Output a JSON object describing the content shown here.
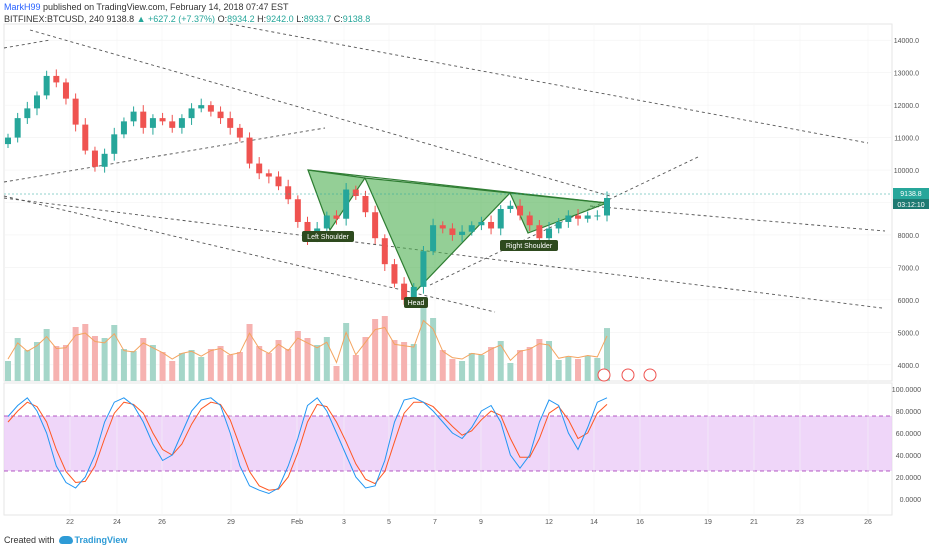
{
  "header": {
    "user": "MarkH99",
    "published": "published on TradingView.com, February 14, 2018 07:47 EST",
    "symbol": "BITFINEX:BTCUSD, 240",
    "price": "9138.8",
    "change": "▲ +627.2 (+7.37%)",
    "o_label": "O:",
    "o_value": "8934.2",
    "h_label": "H:",
    "h_value": "9242.0",
    "l_label": "L:",
    "l_value": "8933.7",
    "c_label": "C:",
    "c_value": "9138.8"
  },
  "footer": {
    "created": "Created with",
    "brand": "TradingView"
  },
  "colors": {
    "up": "#26a69a",
    "down": "#ef5350",
    "pattern_fill": "#4caf50",
    "stoch_k": "#2196f3",
    "stoch_d": "#ff5722",
    "band": "#e1bee7"
  },
  "chart_data": [
    {
      "type": "candlestick",
      "price_axis": [
        "14000.0",
        "13000.0",
        "12000.0",
        "11000.0",
        "10000.0",
        "9000.0",
        "8000.0",
        "7000.0",
        "6000.0",
        "5000.0",
        "4000.0"
      ],
      "x_axis": [
        "22",
        "24",
        "26",
        "29",
        "Feb",
        "3",
        "5",
        "7",
        "9",
        "12",
        "14",
        "16",
        "19",
        "21",
        "23",
        "26"
      ],
      "last_price_label": "9138.8",
      "countdown_label": "03:12:10",
      "annotations": [
        "Left Shoulder",
        "Head",
        "Right Shoulder"
      ],
      "ylim": [
        3500,
        14500
      ],
      "close": [
        11000,
        11600,
        11900,
        12300,
        12900,
        12700,
        12200,
        11400,
        10600,
        10100,
        10500,
        11100,
        11500,
        11800,
        11300,
        11600,
        11500,
        11300,
        11600,
        11900,
        12000,
        11800,
        11600,
        11300,
        11000,
        10200,
        9900,
        9800,
        9500,
        9100,
        8400,
        7900,
        8200,
        8600,
        8500,
        9400,
        9200,
        8700,
        7900,
        7100,
        6500,
        6000,
        6400,
        7500,
        8300,
        8200,
        8000,
        8100,
        8300,
        8400,
        8200,
        8800,
        8900,
        8600,
        8300,
        7900,
        8200,
        8400,
        8600,
        8500,
        8600,
        8600,
        9138.8
      ]
    },
    {
      "type": "bar",
      "name": "volume",
      "note_series": "relative volume per candle"
    },
    {
      "type": "line",
      "name": "stochastic",
      "y_axis": [
        "100.0000",
        "80.0000",
        "60.0000",
        "40.0000",
        "20.0000",
        "0.0000"
      ],
      "band": [
        25,
        75
      ],
      "ylim": [
        0,
        100
      ],
      "k": [
        75,
        85,
        92,
        80,
        60,
        30,
        15,
        10,
        20,
        40,
        70,
        88,
        92,
        85,
        70,
        50,
        35,
        40,
        60,
        80,
        90,
        92,
        85,
        60,
        30,
        12,
        8,
        5,
        10,
        30,
        55,
        85,
        92,
        80,
        60,
        40,
        20,
        10,
        12,
        35,
        70,
        90,
        92,
        88,
        80,
        70,
        60,
        55,
        65,
        80,
        85,
        70,
        40,
        28,
        40,
        70,
        90,
        85,
        60,
        45,
        65,
        88,
        92
      ],
      "d": [
        70,
        80,
        88,
        84,
        70,
        45,
        25,
        15,
        16,
        30,
        55,
        78,
        88,
        86,
        78,
        60,
        45,
        40,
        50,
        68,
        82,
        88,
        86,
        72,
        48,
        25,
        12,
        8,
        9,
        20,
        42,
        70,
        86,
        84,
        70,
        52,
        32,
        18,
        14,
        25,
        52,
        78,
        88,
        88,
        84,
        75,
        66,
        58,
        62,
        72,
        80,
        76,
        55,
        38,
        38,
        55,
        78,
        84,
        72,
        55,
        60,
        78,
        86
      ]
    }
  ]
}
